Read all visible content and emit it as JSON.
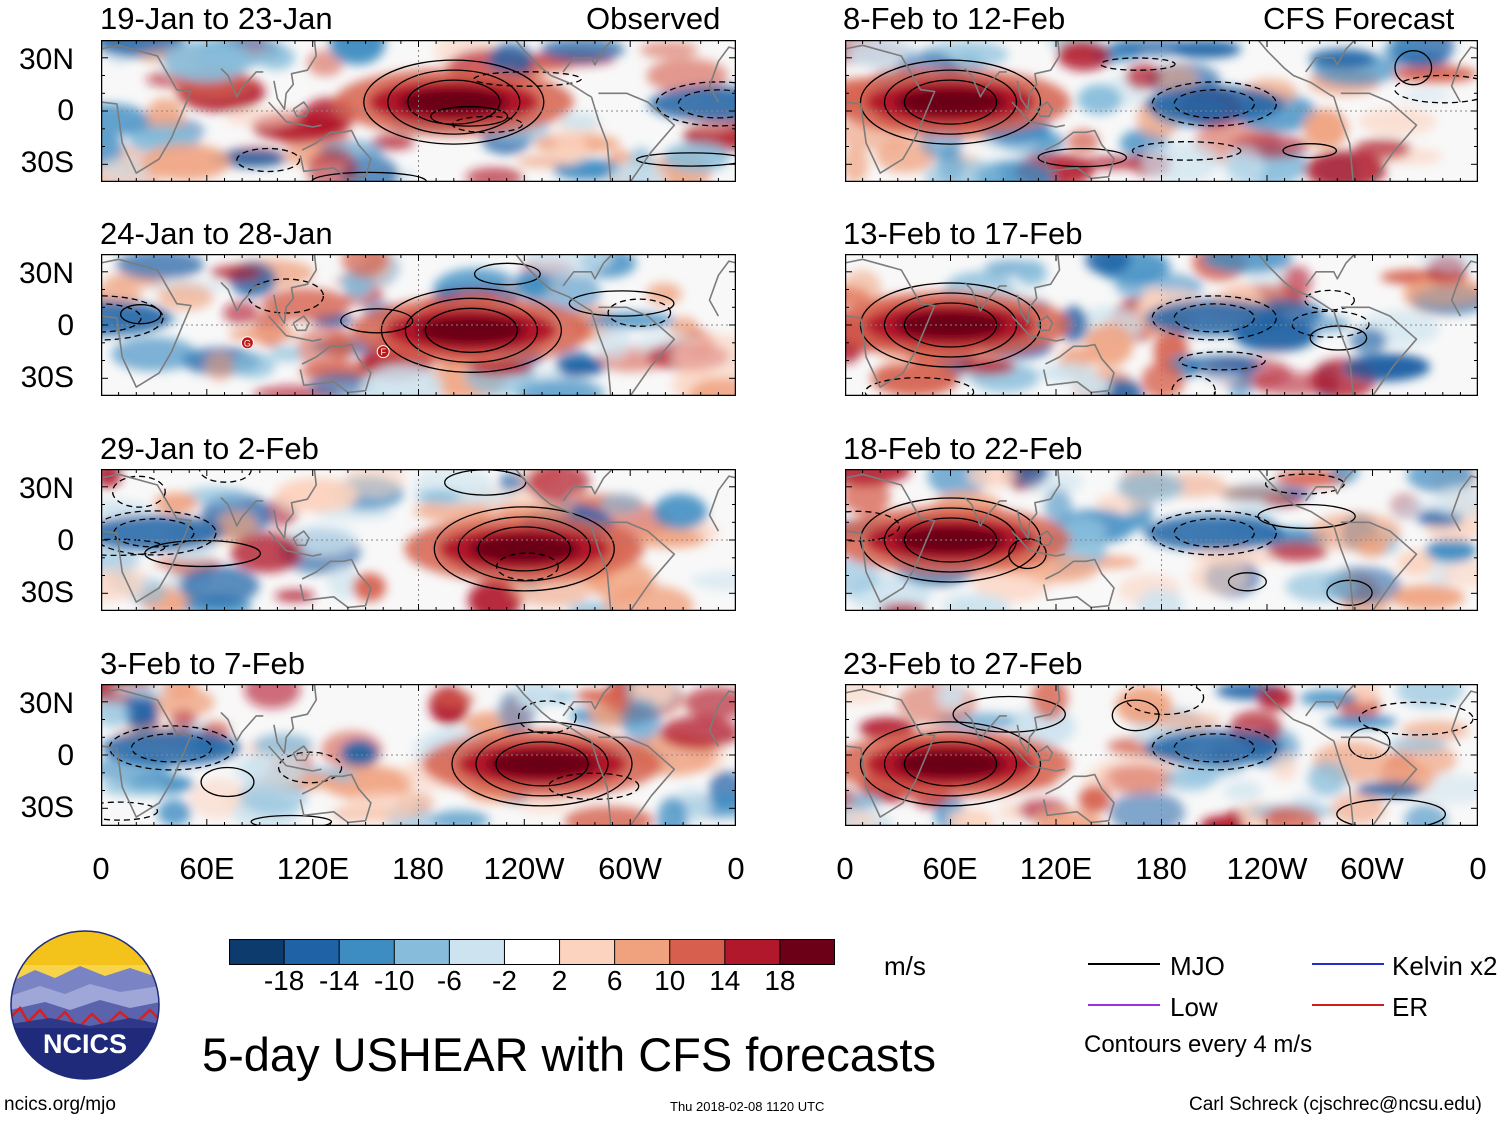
{
  "chart_data": {
    "type": "heatmap",
    "title": "5-day USHEAR with CFS forecasts",
    "variable": "USHEAR",
    "units": "m/s",
    "colorbar": {
      "ticks": [
        "-18",
        "-14",
        "-10",
        "-6",
        "-2",
        "2",
        "6",
        "10",
        "14",
        "18"
      ],
      "colors": [
        "#0d3b6e",
        "#1f63a6",
        "#3d8cc2",
        "#87bddb",
        "#cde3ef",
        "#ffffff",
        "#fcd3bf",
        "#f0a27f",
        "#d6604d",
        "#b2182b",
        "#6b0016"
      ]
    },
    "x_ticks": [
      "0",
      "60E",
      "120E",
      "180",
      "120W",
      "60W",
      "0"
    ],
    "y_ticks": [
      "30N",
      "0",
      "30S"
    ],
    "columns": [
      {
        "label": "Observed",
        "panels": [
          {
            "period": "19-Jan to 23-Jan",
            "max_anomaly_lon": 200,
            "max_anomaly_lat": 5
          },
          {
            "period": "24-Jan to 28-Jan",
            "max_anomaly_lon": 210,
            "max_anomaly_lat": -3,
            "markers": [
              "G",
              "F"
            ]
          },
          {
            "period": "29-Jan to 2-Feb",
            "max_anomaly_lon": 240,
            "max_anomaly_lat": -5
          },
          {
            "period": "3-Feb to 7-Feb",
            "max_anomaly_lon": 250,
            "max_anomaly_lat": -5
          }
        ]
      },
      {
        "label": "CFS Forecast",
        "panels": [
          {
            "period": "8-Feb to 12-Feb",
            "max_anomaly_lon": 60,
            "max_anomaly_lat": 5
          },
          {
            "period": "13-Feb to 17-Feb",
            "max_anomaly_lon": 60,
            "max_anomaly_lat": 0
          },
          {
            "period": "18-Feb to 22-Feb",
            "max_anomaly_lon": 60,
            "max_anomaly_lat": 0
          },
          {
            "period": "23-Feb to 27-Feb",
            "max_anomaly_lon": 60,
            "max_anomaly_lat": -5
          }
        ]
      }
    ],
    "legend": [
      {
        "label": "MJO",
        "color": "#000000"
      },
      {
        "label": "Kelvin x2",
        "color": "#1f2fd0"
      },
      {
        "label": "Low",
        "color": "#9b30e0"
      },
      {
        "label": "ER",
        "color": "#d21d1d"
      }
    ],
    "contour_note": "Contours every 4 m/s"
  },
  "logo": {
    "text": "NCICS"
  },
  "footer": {
    "url": "ncics.org/mjo",
    "timestamp": "Thu 2018-02-08 1120 UTC",
    "credit": "Carl Schreck (cjschrec@ncsu.edu)"
  }
}
